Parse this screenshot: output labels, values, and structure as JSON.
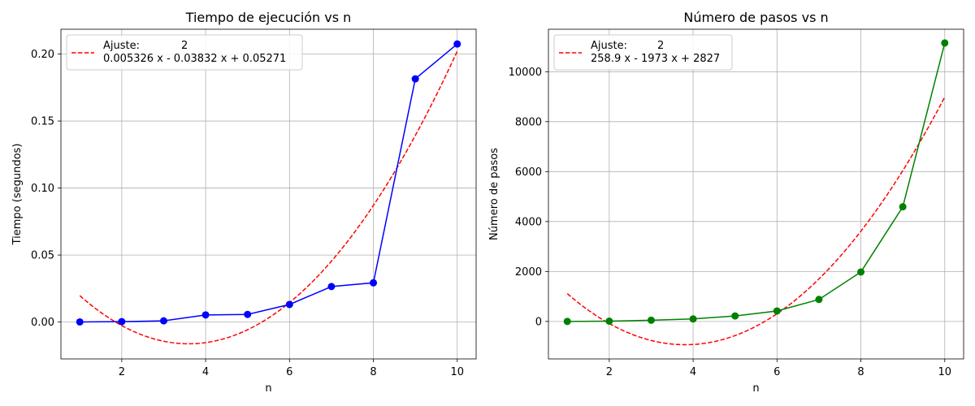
{
  "chart_data": [
    {
      "type": "line",
      "title": "Tiempo de ejecución vs n",
      "xlabel": "n",
      "ylabel": "Tiempo (segundos)",
      "xlim": [
        0.55,
        10.45
      ],
      "ylim": [
        -0.0275,
        0.2185
      ],
      "xticks": [
        2,
        4,
        6,
        8,
        10
      ],
      "xtick_labels": [
        "2",
        "4",
        "6",
        "8",
        "10"
      ],
      "yticks": [
        0.0,
        0.05,
        0.1,
        0.15,
        0.2
      ],
      "ytick_labels": [
        "0.00",
        "0.05",
        "0.10",
        "0.15",
        "0.20"
      ],
      "grid": true,
      "legend_position": "top-left",
      "data_color": "#0000ff",
      "fit_color": "#ff0000",
      "series": [
        {
          "kind": "data",
          "x": [
            1,
            2,
            3,
            4,
            5,
            6,
            7,
            8,
            9,
            10
          ],
          "values": [
            0.0001,
            0.0003,
            0.0009,
            0.0053,
            0.0057,
            0.0131,
            0.0265,
            0.0293,
            0.1815,
            0.2075
          ]
        },
        {
          "kind": "fit",
          "coefficients": [
            0.005326,
            -0.03832,
            0.05271
          ],
          "x_range": [
            1,
            10
          ]
        }
      ],
      "legend_label": "Ajuste:",
      "legend_exponent": "2",
      "legend_equation": "0.005326 x - 0.03832 x + 0.05271"
    },
    {
      "type": "line",
      "title": "Número de pasos vs n",
      "xlabel": "n",
      "ylabel": "Número de pasos",
      "xlim": [
        0.55,
        10.45
      ],
      "ylim": [
        -1500,
        11700
      ],
      "xticks": [
        2,
        4,
        6,
        8,
        10
      ],
      "xtick_labels": [
        "2",
        "4",
        "6",
        "8",
        "10"
      ],
      "yticks": [
        0,
        2000,
        4000,
        6000,
        8000,
        10000
      ],
      "ytick_labels": [
        "0",
        "2000",
        "4000",
        "6000",
        "8000",
        "10000"
      ],
      "grid": true,
      "legend_position": "top-left",
      "data_color": "#008000",
      "fit_color": "#ff0000",
      "series": [
        {
          "kind": "data",
          "x": [
            1,
            2,
            3,
            4,
            5,
            6,
            7,
            8,
            9,
            10
          ],
          "values": [
            1,
            12,
            50,
            100,
            220,
            420,
            880,
            1980,
            4590,
            11150
          ]
        },
        {
          "kind": "fit",
          "coefficients": [
            258.9,
            -1973,
            2827
          ],
          "x_range": [
            1,
            10
          ]
        }
      ],
      "legend_label": "Ajuste:",
      "legend_exponent": "2",
      "legend_equation": "258.9 x - 1973 x + 2827"
    }
  ]
}
